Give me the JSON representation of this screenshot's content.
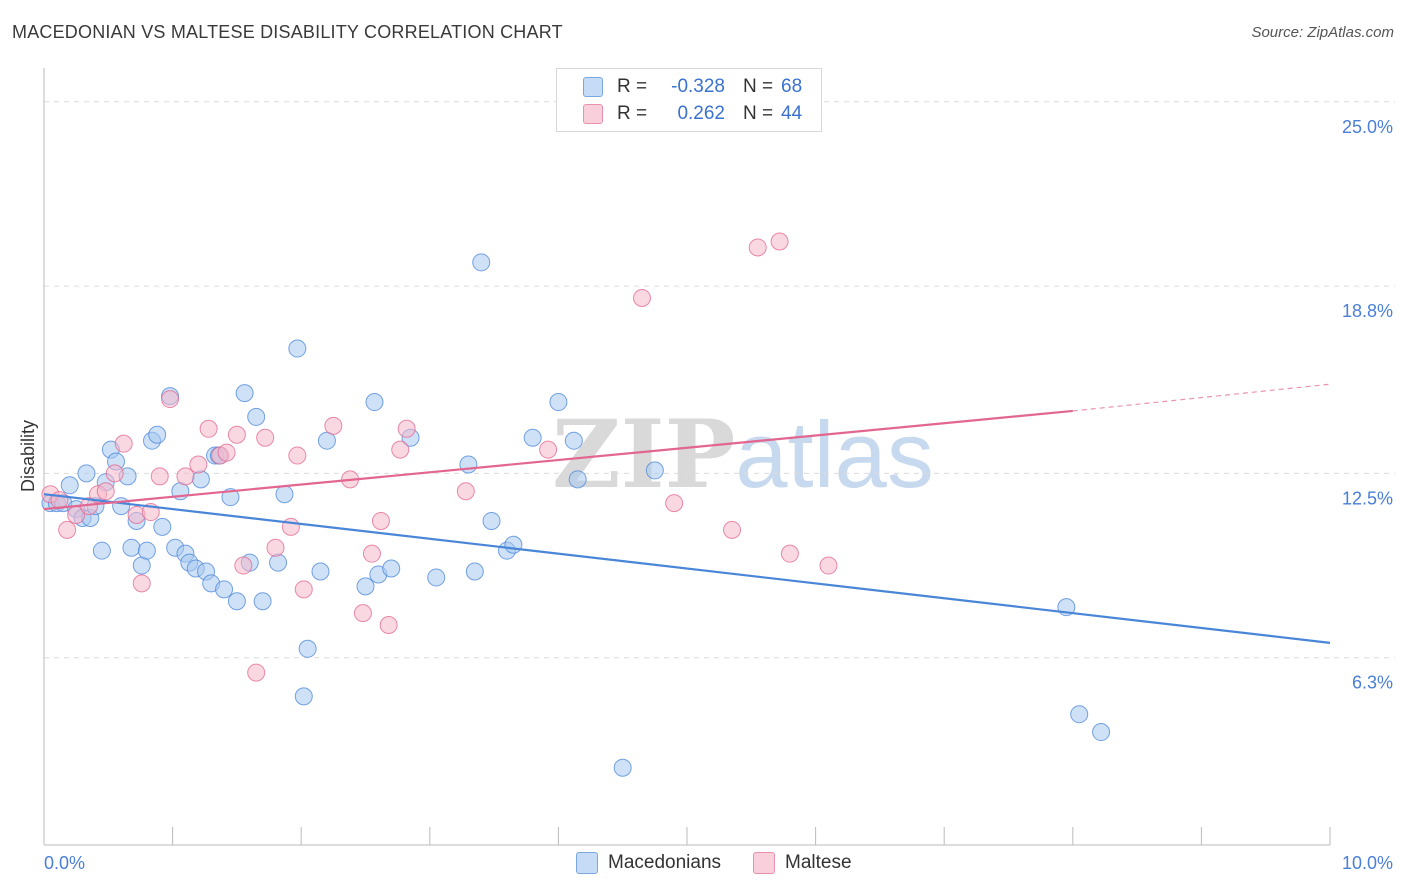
{
  "header": {
    "title": "MACEDONIAN VS MALTESE DISABILITY CORRELATION CHART",
    "source": "Source: ZipAtlas.com"
  },
  "watermark": {
    "zip": "ZIP",
    "atlas": "atlas"
  },
  "legend": {
    "rows": [
      {
        "r_label": "R =",
        "r_value": "-0.328",
        "n_label": "N =",
        "n_value": "68",
        "color": "#a8c8f0"
      },
      {
        "r_label": "R =",
        "r_value": "0.262",
        "n_label": "N =",
        "n_value": "44",
        "color": "#f5b8cb"
      }
    ]
  },
  "bottom_legend": {
    "items": [
      {
        "label": "Macedonians",
        "color": "#a8c8f0"
      },
      {
        "label": "Maltese",
        "color": "#f5b8cb"
      }
    ]
  },
  "chart_data": {
    "type": "scatter",
    "title": "MACEDONIAN VS MALTESE DISABILITY CORRELATION CHART",
    "xlabel": "",
    "ylabel": "Disability",
    "xlim": [
      0,
      10
    ],
    "ylim": [
      0,
      25.8
    ],
    "x_tick_labels": [
      "0.0%",
      "10.0%"
    ],
    "y_ticks": [
      6.3,
      12.5,
      18.8,
      25.0
    ],
    "y_tick_labels": [
      "6.3%",
      "12.5%",
      "18.8%",
      "25.0%"
    ],
    "grid": "horizontal-dashed",
    "legend_position": "top-center",
    "series": [
      {
        "name": "Macedonians",
        "color": "#4a86d8",
        "fill": "#a8c8f0",
        "trend": {
          "x": [
            0.0,
            10.0
          ],
          "y": [
            11.8,
            6.8
          ]
        },
        "points": [
          [
            0.05,
            11.5
          ],
          [
            0.1,
            11.5
          ],
          [
            0.15,
            11.5
          ],
          [
            0.2,
            12.1
          ],
          [
            0.25,
            11.3
          ],
          [
            0.3,
            11.0
          ],
          [
            0.33,
            12.5
          ],
          [
            0.36,
            11.0
          ],
          [
            0.4,
            11.4
          ],
          [
            0.45,
            9.9
          ],
          [
            0.48,
            12.2
          ],
          [
            0.52,
            13.3
          ],
          [
            0.56,
            12.9
          ],
          [
            0.6,
            11.4
          ],
          [
            0.65,
            12.4
          ],
          [
            0.68,
            10.0
          ],
          [
            0.72,
            10.9
          ],
          [
            0.76,
            9.4
          ],
          [
            0.8,
            9.9
          ],
          [
            0.84,
            13.6
          ],
          [
            0.88,
            13.8
          ],
          [
            0.92,
            10.7
          ],
          [
            0.98,
            15.1
          ],
          [
            1.02,
            10.0
          ],
          [
            1.06,
            11.9
          ],
          [
            1.1,
            9.8
          ],
          [
            1.13,
            9.5
          ],
          [
            1.18,
            9.3
          ],
          [
            1.22,
            12.3
          ],
          [
            1.26,
            9.2
          ],
          [
            1.3,
            8.8
          ],
          [
            1.33,
            13.1
          ],
          [
            1.36,
            13.1
          ],
          [
            1.4,
            8.6
          ],
          [
            1.45,
            11.7
          ],
          [
            1.5,
            8.2
          ],
          [
            1.56,
            15.2
          ],
          [
            1.6,
            9.5
          ],
          [
            1.65,
            14.4
          ],
          [
            1.7,
            8.2
          ],
          [
            1.82,
            9.5
          ],
          [
            1.87,
            11.8
          ],
          [
            1.97,
            16.7
          ],
          [
            2.05,
            6.6
          ],
          [
            2.02,
            5.0
          ],
          [
            2.15,
            9.2
          ],
          [
            2.2,
            13.6
          ],
          [
            2.5,
            8.7
          ],
          [
            2.6,
            9.1
          ],
          [
            2.57,
            14.9
          ],
          [
            2.7,
            9.3
          ],
          [
            2.85,
            13.7
          ],
          [
            3.05,
            9.0
          ],
          [
            3.35,
            9.2
          ],
          [
            3.4,
            19.6
          ],
          [
            3.48,
            10.9
          ],
          [
            3.6,
            9.9
          ],
          [
            3.65,
            10.1
          ],
          [
            3.8,
            13.7
          ],
          [
            4.0,
            14.9
          ],
          [
            4.12,
            13.6
          ],
          [
            4.15,
            12.3
          ],
          [
            4.5,
            2.6
          ],
          [
            4.75,
            12.6
          ],
          [
            7.95,
            8.0
          ],
          [
            8.05,
            4.4
          ],
          [
            8.22,
            3.8
          ],
          [
            3.3,
            12.8
          ]
        ]
      },
      {
        "name": "Maltese",
        "color": "#e2668f",
        "fill": "#f5b8cb",
        "trend": {
          "x": [
            0.0,
            8.0
          ],
          "y": [
            11.3,
            14.6
          ]
        },
        "trend_dashed": {
          "x": [
            8.0,
            10.0
          ],
          "y": [
            14.6,
            15.5
          ]
        },
        "points": [
          [
            0.05,
            11.8
          ],
          [
            0.12,
            11.6
          ],
          [
            0.18,
            10.6
          ],
          [
            0.25,
            11.1
          ],
          [
            0.35,
            11.4
          ],
          [
            0.42,
            11.8
          ],
          [
            0.48,
            11.9
          ],
          [
            0.55,
            12.5
          ],
          [
            0.62,
            13.5
          ],
          [
            0.72,
            11.1
          ],
          [
            0.76,
            8.8
          ],
          [
            0.83,
            11.2
          ],
          [
            0.9,
            12.4
          ],
          [
            0.98,
            15.0
          ],
          [
            1.1,
            12.4
          ],
          [
            1.2,
            12.8
          ],
          [
            1.28,
            14.0
          ],
          [
            1.37,
            13.1
          ],
          [
            1.42,
            13.2
          ],
          [
            1.5,
            13.8
          ],
          [
            1.55,
            9.4
          ],
          [
            1.72,
            13.7
          ],
          [
            1.8,
            10.0
          ],
          [
            1.92,
            10.7
          ],
          [
            1.97,
            13.1
          ],
          [
            2.02,
            8.6
          ],
          [
            2.25,
            14.1
          ],
          [
            2.38,
            12.3
          ],
          [
            2.48,
            7.8
          ],
          [
            2.55,
            9.8
          ],
          [
            2.62,
            10.9
          ],
          [
            2.68,
            7.4
          ],
          [
            2.77,
            13.3
          ],
          [
            2.82,
            14.0
          ],
          [
            3.28,
            11.9
          ],
          [
            3.92,
            13.3
          ],
          [
            4.65,
            18.4
          ],
          [
            4.9,
            11.5
          ],
          [
            5.35,
            10.6
          ],
          [
            5.55,
            20.1
          ],
          [
            5.72,
            20.3
          ],
          [
            5.8,
            9.8
          ],
          [
            6.1,
            9.4
          ],
          [
            1.65,
            5.8
          ]
        ]
      }
    ]
  }
}
